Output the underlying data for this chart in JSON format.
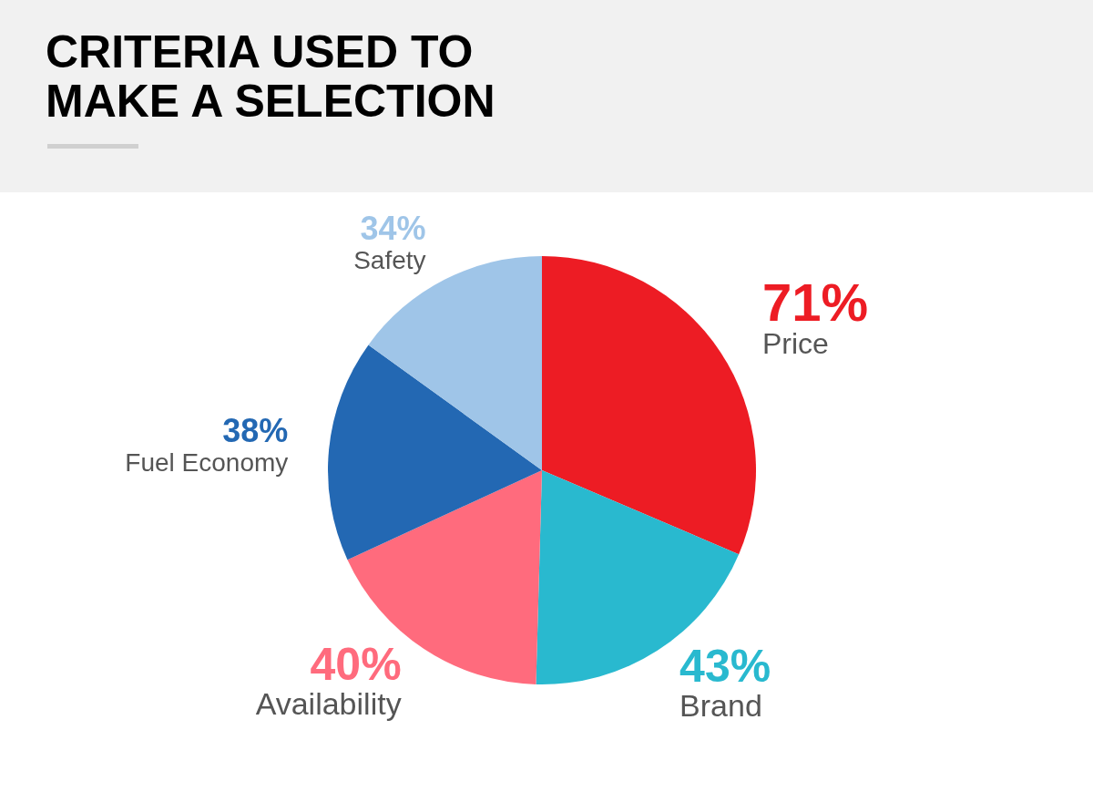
{
  "chart_data": {
    "type": "pie",
    "title": "CRITERIA USED TO MAKE A SELECTION",
    "categories": [
      "Price",
      "Brand",
      "Availability",
      "Fuel Economy",
      "Safety"
    ],
    "values": [
      71,
      43,
      40,
      38,
      34
    ],
    "value_labels": [
      "71%",
      "43%",
      "40%",
      "38%",
      "34%"
    ],
    "colors": [
      "#ed1c24",
      "#29b9cf",
      "#ff6b7d",
      "#2368b3",
      "#9fc5e8"
    ]
  }
}
